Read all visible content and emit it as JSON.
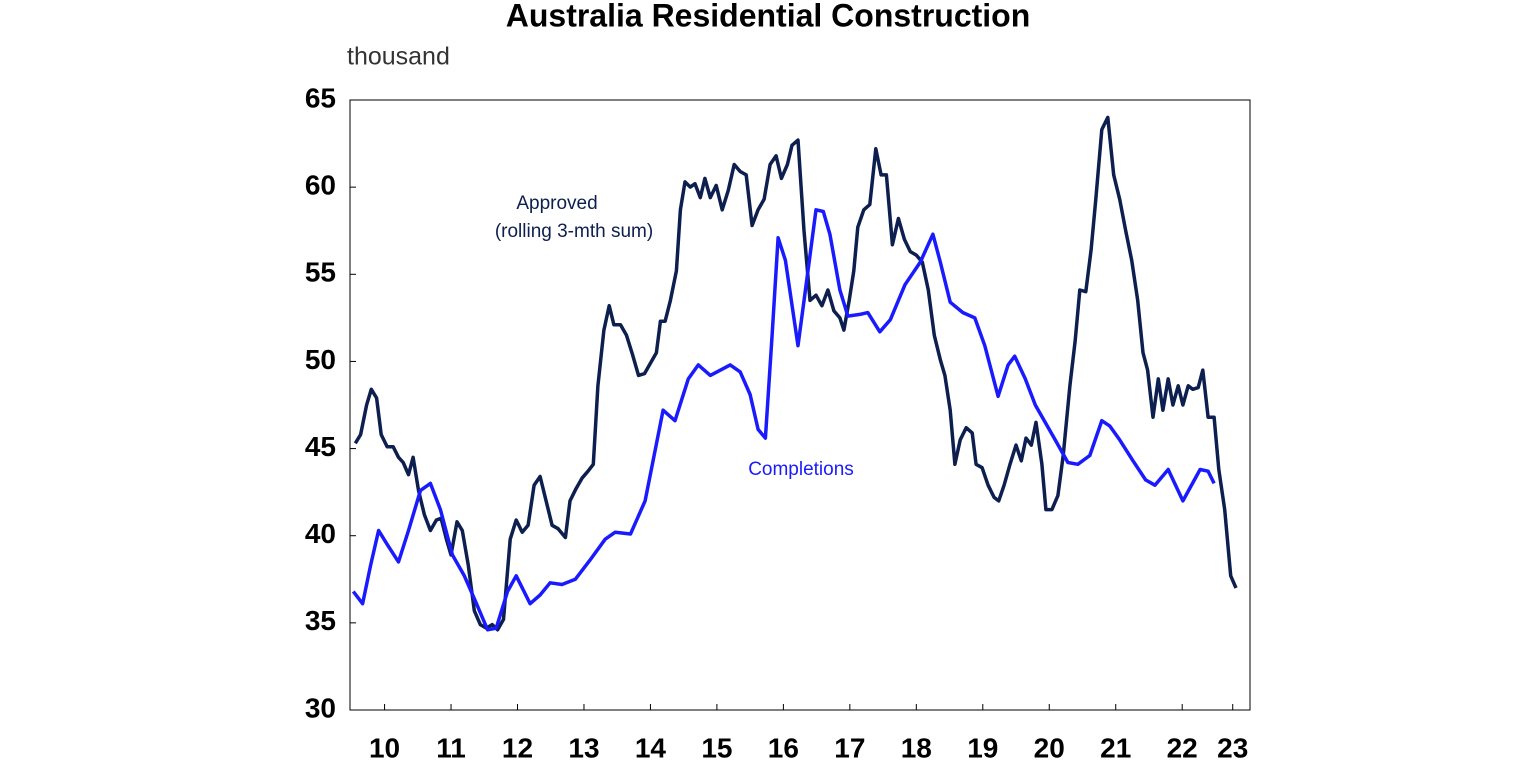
{
  "chart_data": {
    "type": "line",
    "title": "Australia Residential Construction",
    "y_label": "thousand",
    "annotations": [
      "Approved",
      "(rolling 3-mth sum)",
      "Completions"
    ],
    "xlim": [
      2009.98,
      2023.52
    ],
    "xticks": [
      {
        "value": 2010.5,
        "label": "10"
      },
      {
        "value": 2011.5,
        "label": "11"
      },
      {
        "value": 2012.5,
        "label": "12"
      },
      {
        "value": 2013.5,
        "label": "13"
      },
      {
        "value": 2014.5,
        "label": "14"
      },
      {
        "value": 2015.5,
        "label": "15"
      },
      {
        "value": 2016.5,
        "label": "16"
      },
      {
        "value": 2017.5,
        "label": "17"
      },
      {
        "value": 2018.5,
        "label": "18"
      },
      {
        "value": 2019.5,
        "label": "19"
      },
      {
        "value": 2020.5,
        "label": "20"
      },
      {
        "value": 2021.5,
        "label": "21"
      },
      {
        "value": 2022.5,
        "label": "22"
      },
      {
        "value": 2023.26,
        "label": "23"
      }
    ],
    "ylim": [
      30,
      65
    ],
    "yticks": [
      30,
      35,
      40,
      45,
      50,
      55,
      60,
      65
    ],
    "series": [
      {
        "name": "Approved (rolling 3-mth sum)",
        "color": "#0d1f4f",
        "x": [
          2010.06,
          2010.14,
          2010.23,
          2010.3,
          2010.38,
          2010.45,
          2010.54,
          2010.63,
          2010.71,
          2010.78,
          2010.86,
          2010.93,
          2011.01,
          2011.1,
          2011.19,
          2011.28,
          2011.35,
          2011.43,
          2011.5,
          2011.59,
          2011.67,
          2011.76,
          2011.85,
          2011.94,
          2012.03,
          2012.12,
          2012.2,
          2012.29,
          2012.39,
          2012.48,
          2012.57,
          2012.66,
          2012.75,
          2012.84,
          2012.93,
          2013.02,
          2013.11,
          2013.22,
          2013.29,
          2013.38,
          2013.47,
          2013.56,
          2013.64,
          2013.71,
          2013.8,
          2013.88,
          2013.95,
          2014.05,
          2014.14,
          2014.23,
          2014.32,
          2014.41,
          2014.5,
          2014.59,
          2014.65,
          2014.72,
          2014.8,
          2014.89,
          2014.95,
          2015.02,
          2015.1,
          2015.17,
          2015.25,
          2015.32,
          2015.4,
          2015.49,
          2015.58,
          2015.67,
          2015.76,
          2015.85,
          2015.94,
          2016.03,
          2016.12,
          2016.21,
          2016.3,
          2016.39,
          2016.47,
          2016.56,
          2016.63,
          2016.72,
          2016.81,
          2016.9,
          2016.99,
          2017.08,
          2017.17,
          2017.26,
          2017.35,
          2017.41,
          2017.49,
          2017.56,
          2017.62,
          2017.71,
          2017.8,
          2017.89,
          2017.97,
          2018.05,
          2018.14,
          2018.23,
          2018.32,
          2018.41,
          2018.5,
          2018.59,
          2018.68,
          2018.77,
          2018.86,
          2018.93,
          2019.01,
          2019.08,
          2019.16,
          2019.25,
          2019.34,
          2019.4,
          2019.49,
          2019.58,
          2019.67,
          2019.74,
          2019.82,
          2019.91,
          2020.0,
          2020.08,
          2020.15,
          2020.23,
          2020.3,
          2020.39,
          2020.45,
          2020.54,
          2020.63,
          2020.71,
          2020.81,
          2020.89,
          2020.96,
          2021.05,
          2021.13,
          2021.2,
          2021.29,
          2021.38,
          2021.47,
          2021.56,
          2021.65,
          2021.74,
          2021.83,
          2021.91,
          2021.98,
          2022.06,
          2022.14,
          2022.21,
          2022.29,
          2022.36,
          2022.44,
          2022.51,
          2022.59,
          2022.66,
          2022.74,
          2022.81,
          2022.89,
          2022.98,
          2023.05,
          2023.14,
          2023.23,
          2023.31
        ],
        "values": [
          45.3,
          45.8,
          47.5,
          48.4,
          47.9,
          45.8,
          45.1,
          45.1,
          44.5,
          44.2,
          43.5,
          44.5,
          42.6,
          41.2,
          40.3,
          40.9,
          41.0,
          39.8,
          38.9,
          40.8,
          40.3,
          38.3,
          35.7,
          34.9,
          34.7,
          34.9,
          34.6,
          35.2,
          39.8,
          40.9,
          40.2,
          40.6,
          42.9,
          43.4,
          42.0,
          40.6,
          40.4,
          39.9,
          42.0,
          42.7,
          43.3,
          43.7,
          44.1,
          48.6,
          51.8,
          53.2,
          52.1,
          52.1,
          51.5,
          50.4,
          49.2,
          49.3,
          49.9,
          50.5,
          52.3,
          52.3,
          53.5,
          55.2,
          58.7,
          60.3,
          60.0,
          60.2,
          59.4,
          60.5,
          59.4,
          60.1,
          58.7,
          59.8,
          61.3,
          60.9,
          60.7,
          57.8,
          58.7,
          59.3,
          61.3,
          61.8,
          60.5,
          61.3,
          62.4,
          62.7,
          57.5,
          53.5,
          53.8,
          53.2,
          54.1,
          52.9,
          52.5,
          51.8,
          53.5,
          55.2,
          57.7,
          58.7,
          59.0,
          62.2,
          60.7,
          60.7,
          56.7,
          58.2,
          57.0,
          56.3,
          56.1,
          55.7,
          54.1,
          51.5,
          50.1,
          49.2,
          47.2,
          44.1,
          45.5,
          46.2,
          45.9,
          44.1,
          43.9,
          42.9,
          42.2,
          42.0,
          42.9,
          44.1,
          45.2,
          44.3,
          45.6,
          45.2,
          46.5,
          44.1,
          41.5,
          41.5,
          42.3,
          44.6,
          48.6,
          51.2,
          54.1,
          54.0,
          56.4,
          59.3,
          63.3,
          64.0,
          60.7,
          59.3,
          57.5,
          55.8,
          53.5,
          50.5,
          49.5,
          46.8,
          49.0,
          47.2,
          49.0,
          47.5,
          48.6,
          47.5,
          48.6,
          48.4,
          48.5,
          49.5,
          46.8,
          46.8,
          43.8,
          41.5,
          37.7,
          37.0
        ]
      },
      {
        "name": "Completions",
        "color": "#1a1aff",
        "x": [
          2010.03,
          2010.17,
          2010.29,
          2010.41,
          2010.54,
          2010.71,
          2010.86,
          2011.04,
          2011.19,
          2011.34,
          2011.52,
          2011.7,
          2011.86,
          2012.05,
          2012.18,
          2012.35,
          2012.48,
          2012.69,
          2012.84,
          2012.99,
          2013.17,
          2013.37,
          2013.59,
          2013.82,
          2013.97,
          2014.2,
          2014.42,
          2014.69,
          2014.87,
          2015.07,
          2015.22,
          2015.4,
          2015.7,
          2015.85,
          2016.0,
          2016.12,
          2016.23,
          2016.33,
          2016.42,
          2016.53,
          2016.72,
          2016.86,
          2016.99,
          2017.1,
          2017.2,
          2017.35,
          2017.47,
          2017.65,
          2017.77,
          2017.95,
          2018.11,
          2018.33,
          2018.56,
          2018.75,
          2018.86,
          2019.01,
          2019.2,
          2019.38,
          2019.53,
          2019.73,
          2019.88,
          2019.98,
          2020.14,
          2020.29,
          2020.59,
          2020.78,
          2020.93,
          2021.11,
          2021.29,
          2021.41,
          2021.56,
          2021.76,
          2021.95,
          2022.09,
          2022.29,
          2022.51,
          2022.77,
          2022.89,
          2022.98
        ],
        "values": [
          36.8,
          36.1,
          38.3,
          40.3,
          39.5,
          38.5,
          40.3,
          42.6,
          43.0,
          41.5,
          38.9,
          37.7,
          36.3,
          34.6,
          34.7,
          36.8,
          37.7,
          36.1,
          36.6,
          37.3,
          37.2,
          37.5,
          38.6,
          39.8,
          40.2,
          40.1,
          42.0,
          47.2,
          46.6,
          49.0,
          49.8,
          49.2,
          49.8,
          49.4,
          48.1,
          46.1,
          45.6,
          51.5,
          57.1,
          55.8,
          50.9,
          54.9,
          58.7,
          58.6,
          57.3,
          54.1,
          52.6,
          52.7,
          52.8,
          51.7,
          52.4,
          54.4,
          55.7,
          57.3,
          55.7,
          53.4,
          52.8,
          52.5,
          50.9,
          48.0,
          49.8,
          50.3,
          49.0,
          47.5,
          45.5,
          44.2,
          44.1,
          44.6,
          46.6,
          46.3,
          45.5,
          44.3,
          43.2,
          42.9,
          43.8,
          42.0,
          43.8,
          43.7,
          43.0
        ]
      }
    ]
  }
}
